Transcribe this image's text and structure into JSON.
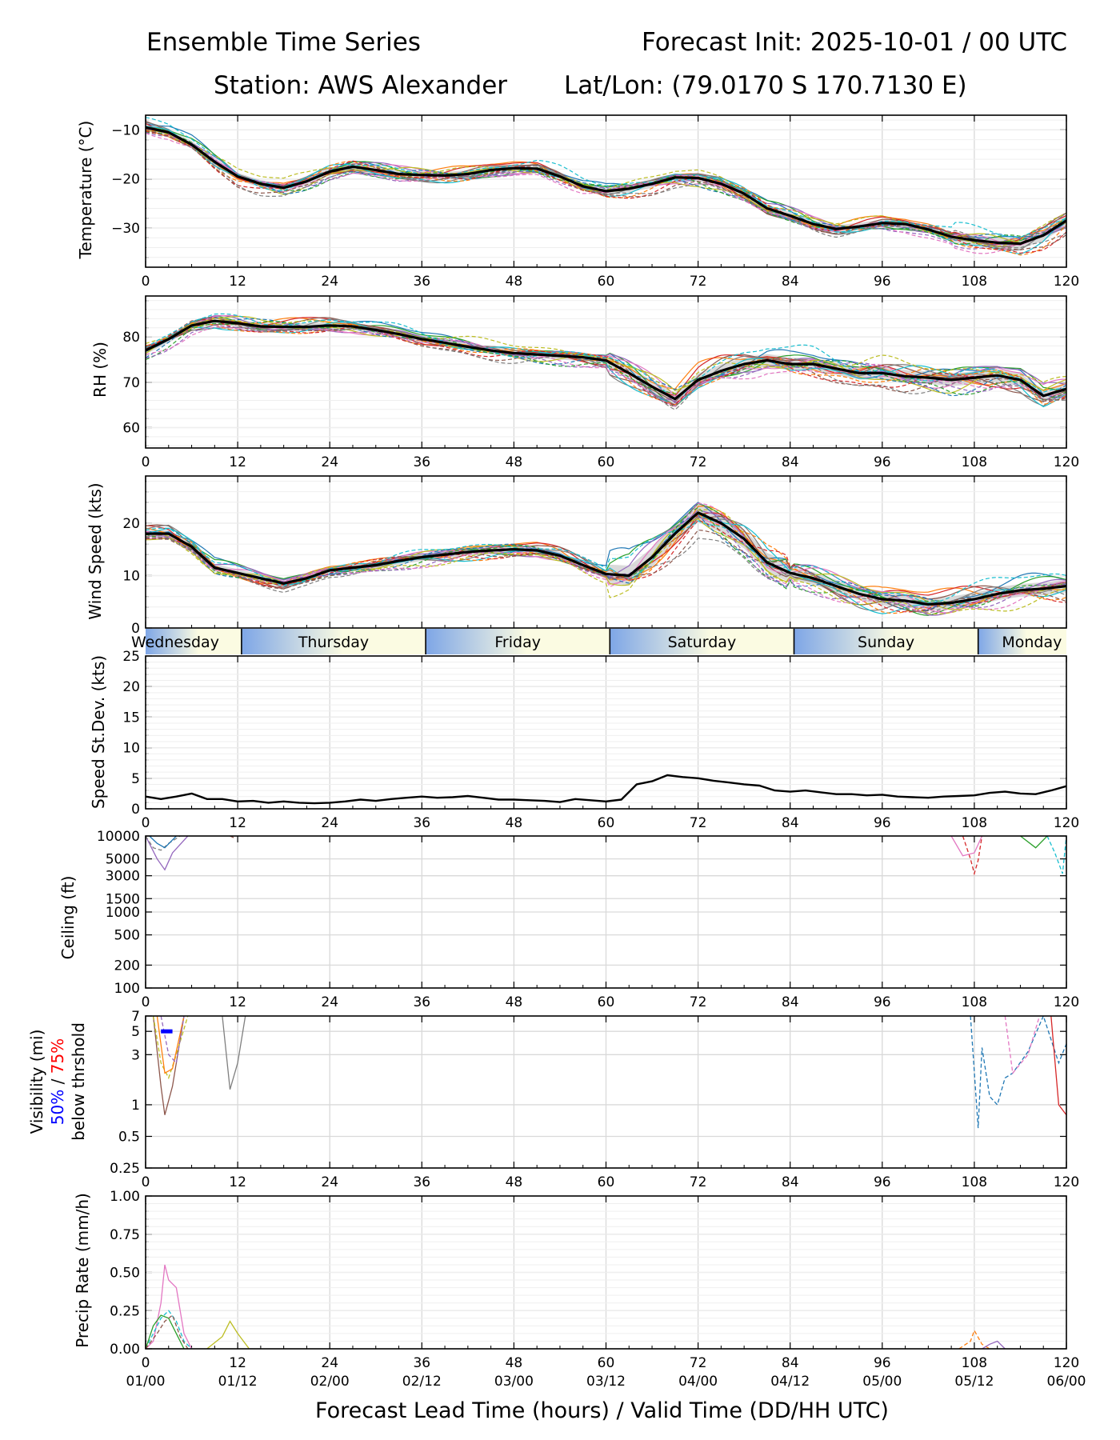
{
  "header": {
    "title_left": "Ensemble Time Series",
    "title_right": "Forecast Init: 2025-10-01 / 00 UTC",
    "station": "Station: AWS Alexander",
    "latlon": "Lat/Lon: (79.0170 S 170.7130 E)"
  },
  "x_axis": {
    "lead_ticks": [
      "0",
      "12",
      "24",
      "36",
      "48",
      "60",
      "72",
      "84",
      "96",
      "108",
      "120"
    ],
    "valid_ticks": [
      "01/00",
      "01/12",
      "02/00",
      "02/12",
      "03/00",
      "03/12",
      "04/00",
      "04/12",
      "05/00",
      "05/12",
      "06/00"
    ],
    "xlabel": "Forecast Lead Time (hours) / Valid Time (DD/HH UTC)",
    "range": [
      0,
      120
    ]
  },
  "day_bar": {
    "days": [
      {
        "name": "Wednesday",
        "start": 0,
        "end": 12.5
      },
      {
        "name": "Thursday",
        "start": 12.5,
        "end": 36.5
      },
      {
        "name": "Friday",
        "start": 36.5,
        "end": 60.5
      },
      {
        "name": "Saturday",
        "start": 60.5,
        "end": 84.5
      },
      {
        "name": "Sunday",
        "start": 84.5,
        "end": 108.5
      },
      {
        "name": "Monday",
        "start": 108.5,
        "end": 120
      }
    ]
  },
  "colors": {
    "members": [
      "#1f77b4",
      "#ff7f0e",
      "#2ca02c",
      "#d62728",
      "#9467bd",
      "#8c564b",
      "#e377c2",
      "#7f7f7f",
      "#bcbd22",
      "#17becf"
    ],
    "mean": "#000000",
    "spread": "#bbbbbb",
    "p50": "#0000ff",
    "p75": "#ff0000",
    "grid": "#d9d9d9"
  },
  "chart_data": [
    {
      "id": "temperature",
      "type": "line",
      "ylabel": "Temperature (°C)",
      "ylim": [
        -38,
        -7
      ],
      "yticks": [
        -30,
        -20,
        -10
      ],
      "ytick_labels": [
        "−30",
        "−20",
        "−10"
      ],
      "x": [
        0,
        3,
        6,
        9,
        12,
        15,
        18,
        21,
        24,
        27,
        30,
        33,
        36,
        39,
        42,
        45,
        48,
        51,
        54,
        57,
        60,
        63,
        66,
        69,
        72,
        75,
        78,
        81,
        84,
        87,
        90,
        93,
        96,
        99,
        102,
        105,
        108,
        111,
        114,
        117,
        120
      ],
      "mean": [
        -9.5,
        -10.5,
        -13,
        -16.5,
        -19.5,
        -21,
        -21.8,
        -20.5,
        -18.5,
        -17.5,
        -18.2,
        -19,
        -19.2,
        -19.3,
        -19,
        -18.2,
        -17.8,
        -17.9,
        -19.5,
        -21.5,
        -22.5,
        -22,
        -21,
        -19.7,
        -19.8,
        -21,
        -23,
        -26,
        -27.5,
        -29.2,
        -30.2,
        -29.7,
        -29,
        -29.2,
        -30.3,
        -31.8,
        -32.5,
        -33,
        -33.2,
        -31.5,
        -28.5
      ],
      "members": 20
    },
    {
      "id": "rh",
      "type": "line",
      "ylabel": "RH (%)",
      "ylim": [
        55.5,
        89
      ],
      "yticks": [
        60,
        70,
        80
      ],
      "ytick_labels": [
        "60",
        "70",
        "80"
      ],
      "x": [
        0,
        3,
        6,
        9,
        12,
        15,
        18,
        21,
        24,
        27,
        30,
        33,
        36,
        39,
        42,
        45,
        48,
        51,
        54,
        57,
        60,
        63,
        66,
        69,
        72,
        75,
        78,
        81,
        84,
        87,
        90,
        93,
        96,
        99,
        102,
        105,
        108,
        111,
        114,
        117,
        120
      ],
      "mean": [
        77,
        79.5,
        82.5,
        83.5,
        83,
        82.3,
        82.2,
        82.2,
        82.5,
        82.3,
        81.5,
        80.6,
        79.5,
        78.7,
        77.8,
        77,
        76.4,
        76.1,
        75.8,
        75.5,
        74.8,
        72,
        69,
        66.3,
        70.5,
        72.5,
        74,
        74.8,
        74,
        74,
        73,
        72,
        72,
        71.3,
        71,
        70.5,
        71,
        71.5,
        70.5,
        67,
        68.5
      ],
      "members": 20
    },
    {
      "id": "wind",
      "type": "line",
      "ylabel": "Wind Speed (kts)",
      "ylim": [
        0,
        29
      ],
      "yticks": [
        0,
        10,
        20
      ],
      "ytick_labels": [
        "0",
        "10",
        "20"
      ],
      "x": [
        0,
        3,
        6,
        9,
        12,
        15,
        18,
        21,
        24,
        27,
        30,
        33,
        36,
        39,
        42,
        45,
        48,
        51,
        54,
        57,
        60,
        63,
        66,
        69,
        72,
        75,
        78,
        81,
        84,
        87,
        90,
        93,
        96,
        99,
        102,
        105,
        108,
        111,
        114,
        117,
        120
      ],
      "mean": [
        18,
        18,
        15.5,
        11.5,
        10.5,
        9.5,
        8.5,
        9.5,
        11,
        11.5,
        12,
        12.8,
        13.5,
        14,
        14.5,
        14.8,
        15,
        14.8,
        13.8,
        12,
        10.3,
        10,
        13.5,
        18,
        22,
        20,
        17,
        12.5,
        10.5,
        9.5,
        8,
        6.5,
        5.5,
        5.2,
        4.5,
        4.8,
        5.5,
        6.5,
        7.2,
        7.5,
        8
      ],
      "members": 20
    },
    {
      "id": "speed_sd",
      "type": "line",
      "ylabel": "Speed St.Dev. (kts)",
      "ylim": [
        0,
        25
      ],
      "yticks": [
        0,
        5,
        10,
        15,
        20,
        25
      ],
      "ytick_labels": [
        "0",
        "5",
        "10",
        "15",
        "20",
        "25"
      ],
      "x": [
        0,
        2,
        4,
        6,
        8,
        10,
        12,
        14,
        16,
        18,
        20,
        22,
        24,
        26,
        28,
        30,
        32,
        34,
        36,
        38,
        40,
        42,
        44,
        46,
        48,
        50,
        52,
        54,
        56,
        58,
        60,
        62,
        64,
        66,
        68,
        70,
        72,
        74,
        76,
        78,
        80,
        82,
        84,
        86,
        88,
        90,
        92,
        94,
        96,
        98,
        100,
        102,
        104,
        106,
        108,
        110,
        112,
        114,
        116,
        118,
        120
      ],
      "values": [
        2,
        1.6,
        2,
        2.5,
        1.6,
        1.6,
        1.2,
        1.3,
        1,
        1.2,
        1,
        0.9,
        1,
        1.2,
        1.5,
        1.3,
        1.6,
        1.8,
        2,
        1.8,
        1.9,
        2.1,
        1.8,
        1.5,
        1.5,
        1.4,
        1.3,
        1.1,
        1.6,
        1.4,
        1.2,
        1.5,
        4,
        4.5,
        5.5,
        5.2,
        5,
        4.6,
        4.3,
        4,
        3.8,
        3,
        2.8,
        3,
        2.7,
        2.4,
        2.4,
        2.2,
        2.3,
        2,
        1.9,
        1.8,
        2,
        2.1,
        2.2,
        2.6,
        2.8,
        2.5,
        2.4,
        3,
        3.7
      ]
    },
    {
      "id": "ceiling",
      "type": "line",
      "ylabel": "Ceiling (ft)",
      "yscale": "log",
      "ylim": [
        100,
        10000
      ],
      "yticks": [
        100,
        200,
        500,
        1000,
        1500,
        3000,
        5000,
        10000
      ],
      "ytick_labels": [
        "100",
        "200",
        "500",
        "1000",
        "1500",
        "3000",
        "5000",
        "10000"
      ],
      "members": [
        {
          "x": [
            0,
            1.5,
            2.5,
            3.5,
            5.5
          ],
          "y": [
            10000,
            5000,
            3600,
            6000,
            10000
          ]
        },
        {
          "x": [
            0,
            1,
            2,
            3,
            4.5
          ],
          "y": [
            10000,
            7000,
            6500,
            8000,
            10000
          ]
        },
        {
          "x": [
            0.5,
            1.5,
            2.5,
            4
          ],
          "y": [
            10000,
            8000,
            7000,
            10000
          ]
        },
        {
          "x": [
            106.5,
            107.5,
            108,
            108.5,
            109
          ],
          "y": [
            10000,
            5000,
            3200,
            4800,
            10000
          ]
        },
        {
          "x": [
            105,
            106.5,
            108,
            109
          ],
          "y": [
            10000,
            5500,
            6000,
            10000
          ]
        },
        {
          "x": [
            117.5,
            118.5,
            119.5,
            120
          ],
          "y": [
            10000,
            6000,
            3200,
            10000
          ]
        },
        {
          "x": [
            114,
            116,
            117.5
          ],
          "y": [
            10000,
            7000,
            10000
          ]
        },
        {
          "x": [
            11,
            11.5
          ],
          "y": [
            10000,
            9500
          ]
        }
      ]
    },
    {
      "id": "visibility",
      "type": "line",
      "ylabel": "Visibility (mi)",
      "ylabel_sub": "below thrshold",
      "ylabel_p50": "50%",
      "ylabel_sep": " / ",
      "ylabel_p75": "75%",
      "yscale": "log",
      "ylim": [
        0.25,
        7
      ],
      "yticks": [
        0.25,
        0.5,
        1,
        3,
        5,
        7
      ],
      "ytick_labels": [
        "0.25",
        "0.5",
        "1",
        "3",
        "5",
        "7"
      ],
      "threshold_50": {
        "x": [
          2,
          3.5
        ],
        "y": 5
      },
      "members": [
        {
          "x": [
            1,
            2,
            2.5,
            3.5,
            5
          ],
          "y": [
            7,
            1.5,
            0.8,
            1.5,
            7
          ]
        },
        {
          "x": [
            1,
            2,
            3,
            4,
            5.5
          ],
          "y": [
            7,
            2.5,
            1.8,
            3,
            7
          ]
        },
        {
          "x": [
            1.5,
            2.5,
            3.5,
            5
          ],
          "y": [
            7,
            2,
            2.2,
            7
          ]
        },
        {
          "x": [
            2,
            3,
            4,
            5
          ],
          "y": [
            7,
            3,
            2.5,
            7
          ]
        },
        {
          "x": [
            10,
            11,
            12,
            13
          ],
          "y": [
            7,
            1.4,
            2.5,
            7
          ]
        },
        {
          "x": [
            107.5,
            108.5,
            109,
            110,
            111,
            112,
            113,
            115,
            117,
            119,
            120
          ],
          "y": [
            7,
            0.6,
            3.5,
            1.2,
            1,
            1.8,
            2,
            3.2,
            7,
            2.5,
            3.8
          ]
        },
        {
          "x": [
            118,
            119,
            120
          ],
          "y": [
            7,
            1,
            0.8
          ]
        },
        {
          "x": [
            112,
            113,
            115,
            116.5
          ],
          "y": [
            7,
            2,
            3,
            7
          ]
        }
      ]
    },
    {
      "id": "precip",
      "type": "line",
      "ylabel": "Precip Rate (mm/h)",
      "ylim": [
        0,
        1.0
      ],
      "yticks": [
        0,
        0.25,
        0.5,
        0.75,
        1.0
      ],
      "ytick_labels": [
        "0.00",
        "0.25",
        "0.50",
        "0.75",
        "1.00"
      ],
      "members": [
        {
          "x": [
            0,
            1,
            2,
            2.5,
            3,
            4,
            5,
            6
          ],
          "y": [
            0,
            0.05,
            0.3,
            0.55,
            0.45,
            0.4,
            0.1,
            0
          ]
        },
        {
          "x": [
            0,
            1,
            2,
            3,
            4,
            5,
            6
          ],
          "y": [
            0,
            0.1,
            0.2,
            0.25,
            0.18,
            0.05,
            0
          ]
        },
        {
          "x": [
            0,
            1,
            2,
            3,
            4,
            5
          ],
          "y": [
            0,
            0.15,
            0.22,
            0.2,
            0.1,
            0
          ]
        },
        {
          "x": [
            0,
            1.5,
            2.5,
            3.5,
            4.5,
            5.5
          ],
          "y": [
            0,
            0.1,
            0.18,
            0.22,
            0.08,
            0
          ]
        },
        {
          "x": [
            8,
            10,
            11,
            12,
            13.5
          ],
          "y": [
            0,
            0.08,
            0.18,
            0.1,
            0
          ]
        },
        {
          "x": [
            106,
            107.5,
            108,
            109,
            110
          ],
          "y": [
            0,
            0.05,
            0.12,
            0.03,
            0
          ]
        },
        {
          "x": [
            109,
            110,
            111,
            112
          ],
          "y": [
            0,
            0.03,
            0.05,
            0
          ]
        }
      ]
    }
  ]
}
